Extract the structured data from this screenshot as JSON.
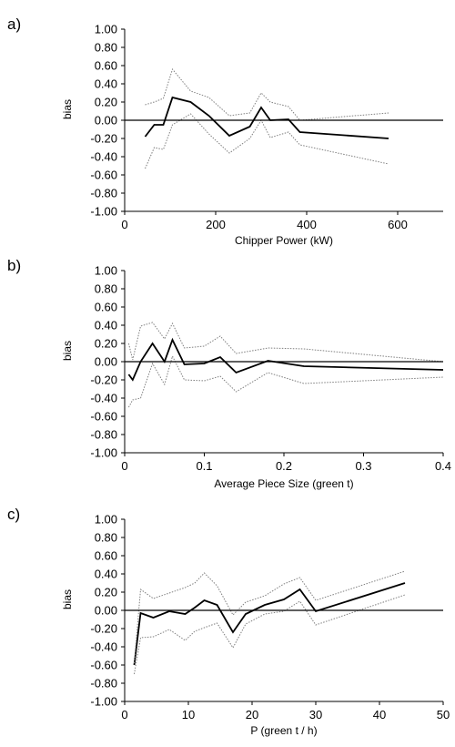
{
  "chart_data": [
    {
      "type": "line",
      "panel_label": "a)",
      "xlabel": "Chipper Power (kW)",
      "ylabel": "bias",
      "xlim": [
        0,
        700
      ],
      "ylim": [
        -1,
        1
      ],
      "xticks": [
        0,
        200,
        400,
        600
      ],
      "yticks": [
        -1,
        -0.8,
        -0.6,
        -0.4,
        -0.2,
        0,
        0.2,
        0.4,
        0.6,
        0.8,
        1
      ],
      "grid": false,
      "series": [
        {
          "role": "mean",
          "style": "solid",
          "color": "#000000",
          "x": [
            45,
            65,
            85,
            105,
            145,
            185,
            230,
            275,
            300,
            320,
            360,
            385,
            580
          ],
          "y": [
            -0.18,
            -0.05,
            -0.05,
            0.25,
            0.2,
            0.05,
            -0.17,
            -0.07,
            0.14,
            0.0,
            0.01,
            -0.13,
            -0.2
          ]
        },
        {
          "role": "upper",
          "style": "dotted",
          "color": "#7f7f7f",
          "x": [
            45,
            65,
            85,
            105,
            145,
            185,
            230,
            275,
            300,
            320,
            360,
            385,
            580
          ],
          "y": [
            0.17,
            0.2,
            0.24,
            0.56,
            0.32,
            0.25,
            0.05,
            0.08,
            0.3,
            0.2,
            0.15,
            0.0,
            0.08
          ]
        },
        {
          "role": "lower",
          "style": "dotted",
          "color": "#7f7f7f",
          "x": [
            45,
            65,
            85,
            105,
            145,
            185,
            230,
            275,
            300,
            320,
            360,
            385,
            580
          ],
          "y": [
            -0.53,
            -0.3,
            -0.32,
            -0.05,
            0.07,
            -0.15,
            -0.36,
            -0.2,
            0.0,
            -0.19,
            -0.13,
            -0.27,
            -0.48
          ]
        }
      ]
    },
    {
      "type": "line",
      "panel_label": "b)",
      "xlabel": "Average Piece Size (green t)",
      "ylabel": "bias",
      "xlim": [
        0,
        0.4
      ],
      "ylim": [
        -1,
        1
      ],
      "xticks": [
        0,
        0.1,
        0.2,
        0.3,
        0.4
      ],
      "yticks": [
        -1,
        -0.8,
        -0.6,
        -0.4,
        -0.2,
        0,
        0.2,
        0.4,
        0.6,
        0.8,
        1
      ],
      "grid": false,
      "series": [
        {
          "role": "mean",
          "style": "solid",
          "color": "#000000",
          "x": [
            0.005,
            0.01,
            0.02,
            0.035,
            0.05,
            0.06,
            0.075,
            0.1,
            0.12,
            0.14,
            0.18,
            0.225,
            0.4
          ],
          "y": [
            -0.14,
            -0.2,
            0.0,
            0.2,
            0.0,
            0.24,
            -0.03,
            -0.02,
            0.05,
            -0.12,
            0.01,
            -0.05,
            -0.09
          ]
        },
        {
          "role": "upper",
          "style": "dotted",
          "color": "#7f7f7f",
          "x": [
            0.005,
            0.01,
            0.02,
            0.035,
            0.05,
            0.06,
            0.075,
            0.1,
            0.12,
            0.14,
            0.18,
            0.225,
            0.4
          ],
          "y": [
            0.2,
            0.02,
            0.39,
            0.43,
            0.25,
            0.42,
            0.15,
            0.17,
            0.28,
            0.09,
            0.15,
            0.14,
            0.0
          ]
        },
        {
          "role": "lower",
          "style": "dotted",
          "color": "#7f7f7f",
          "x": [
            0.005,
            0.01,
            0.02,
            0.035,
            0.05,
            0.06,
            0.075,
            0.1,
            0.12,
            0.14,
            0.18,
            0.225,
            0.4
          ],
          "y": [
            -0.5,
            -0.42,
            -0.4,
            -0.02,
            -0.25,
            0.06,
            -0.2,
            -0.21,
            -0.16,
            -0.33,
            -0.12,
            -0.24,
            -0.17
          ]
        }
      ]
    },
    {
      "type": "line",
      "panel_label": "c)",
      "xlabel": "P (green t / h)",
      "ylabel": "bias",
      "xlim": [
        0,
        50
      ],
      "ylim": [
        -1,
        1
      ],
      "xticks": [
        0,
        10,
        20,
        30,
        40,
        50
      ],
      "yticks": [
        -1,
        -0.8,
        -0.6,
        -0.4,
        -0.2,
        0,
        0.2,
        0.4,
        0.6,
        0.8,
        1
      ],
      "grid": false,
      "series": [
        {
          "role": "mean",
          "style": "solid",
          "color": "#000000",
          "x": [
            1.5,
            2.5,
            4.5,
            7,
            9.5,
            11,
            12.5,
            14.5,
            17,
            19,
            22,
            25,
            27.5,
            30,
            44
          ],
          "y": [
            -0.6,
            -0.03,
            -0.08,
            -0.01,
            -0.04,
            0.03,
            0.11,
            0.06,
            -0.24,
            -0.04,
            0.06,
            0.12,
            0.23,
            -0.01,
            0.3
          ]
        },
        {
          "role": "upper",
          "style": "dotted",
          "color": "#7f7f7f",
          "x": [
            1.5,
            2.5,
            4.5,
            7,
            9.5,
            11,
            12.5,
            14.5,
            17,
            19,
            22,
            25,
            27.5,
            30,
            44
          ],
          "y": [
            -0.58,
            0.23,
            0.13,
            0.19,
            0.25,
            0.3,
            0.41,
            0.27,
            -0.05,
            0.09,
            0.16,
            0.29,
            0.36,
            0.11,
            0.43
          ]
        },
        {
          "role": "lower",
          "style": "dotted",
          "color": "#7f7f7f",
          "x": [
            1.5,
            2.5,
            4.5,
            7,
            9.5,
            11,
            12.5,
            14.5,
            17,
            19,
            22,
            25,
            27.5,
            30,
            44
          ],
          "y": [
            -0.7,
            -0.3,
            -0.29,
            -0.21,
            -0.33,
            -0.23,
            -0.19,
            -0.14,
            -0.41,
            -0.15,
            -0.04,
            -0.01,
            0.1,
            -0.16,
            0.17
          ]
        }
      ]
    }
  ]
}
